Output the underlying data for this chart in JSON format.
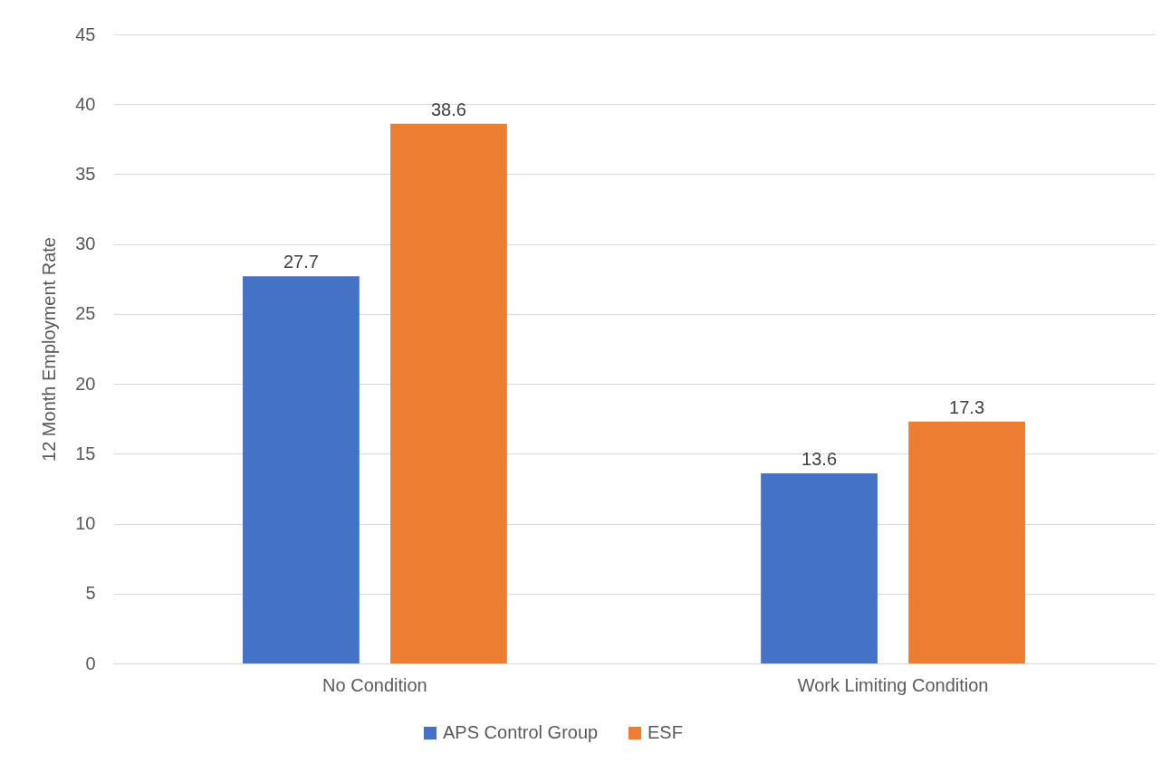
{
  "chart_data": {
    "type": "bar",
    "categories": [
      "No Condition",
      "Work Limiting Condition"
    ],
    "ylabel": "12 Month Employment Rate",
    "series": [
      {
        "name": "APS Control Group",
        "color": "#4472c4",
        "values": [
          27.7,
          13.6
        ]
      },
      {
        "name": "ESF",
        "color": "#ed7d31",
        "values": [
          38.6,
          17.3
        ]
      }
    ],
    "ylim": [
      0,
      45
    ],
    "yticks": [
      0,
      5,
      10,
      15,
      20,
      25,
      30,
      35,
      40,
      45
    ],
    "grid": "y",
    "legend": "bottom",
    "data_labels": true
  }
}
